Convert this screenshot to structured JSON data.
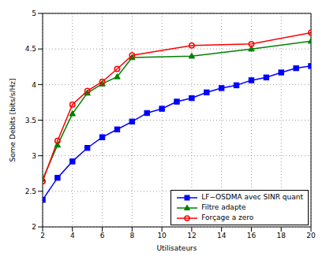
{
  "chart_data": {
    "type": "line",
    "x_label": "Utilisateurs",
    "y_label": "Some Debits [bits/s/Hz]",
    "xlim": [
      2,
      20
    ],
    "xticks": [
      2,
      4,
      6,
      8,
      10,
      12,
      14,
      16,
      18,
      20
    ],
    "ylim": [
      2,
      5
    ],
    "yticks": [
      2,
      2.5,
      3,
      3.5,
      4,
      4.5,
      5
    ],
    "grid": true,
    "legend": "lower right",
    "series": [
      {
        "name": "LF−OSDMA avec SINR quant",
        "color": "#0000ff",
        "marker": "square",
        "x": [
          2,
          3,
          4,
          5,
          6,
          7,
          8,
          9,
          10,
          11,
          12,
          13,
          14,
          15,
          16,
          17,
          18,
          19,
          20
        ],
        "values": [
          2.38,
          2.69,
          2.92,
          3.11,
          3.26,
          3.37,
          3.48,
          3.6,
          3.66,
          3.76,
          3.81,
          3.89,
          3.95,
          3.99,
          4.06,
          4.1,
          4.17,
          4.23,
          4.26
        ]
      },
      {
        "name": "Filtre adapte",
        "color": "#008000",
        "marker": "triangle",
        "x": [
          2,
          3,
          4,
          5,
          6,
          7,
          8,
          12,
          16,
          20
        ],
        "values": [
          2.67,
          3.15,
          3.59,
          3.88,
          4.01,
          4.11,
          4.38,
          4.4,
          4.5,
          4.61
        ]
      },
      {
        "name": "Forçage a zero",
        "color": "#ff0000",
        "marker": "circle",
        "x": [
          2,
          3,
          4,
          5,
          6,
          7,
          8,
          12,
          16,
          20
        ],
        "values": [
          2.64,
          3.21,
          3.72,
          3.91,
          4.04,
          4.22,
          4.41,
          4.55,
          4.57,
          4.73
        ]
      }
    ]
  }
}
